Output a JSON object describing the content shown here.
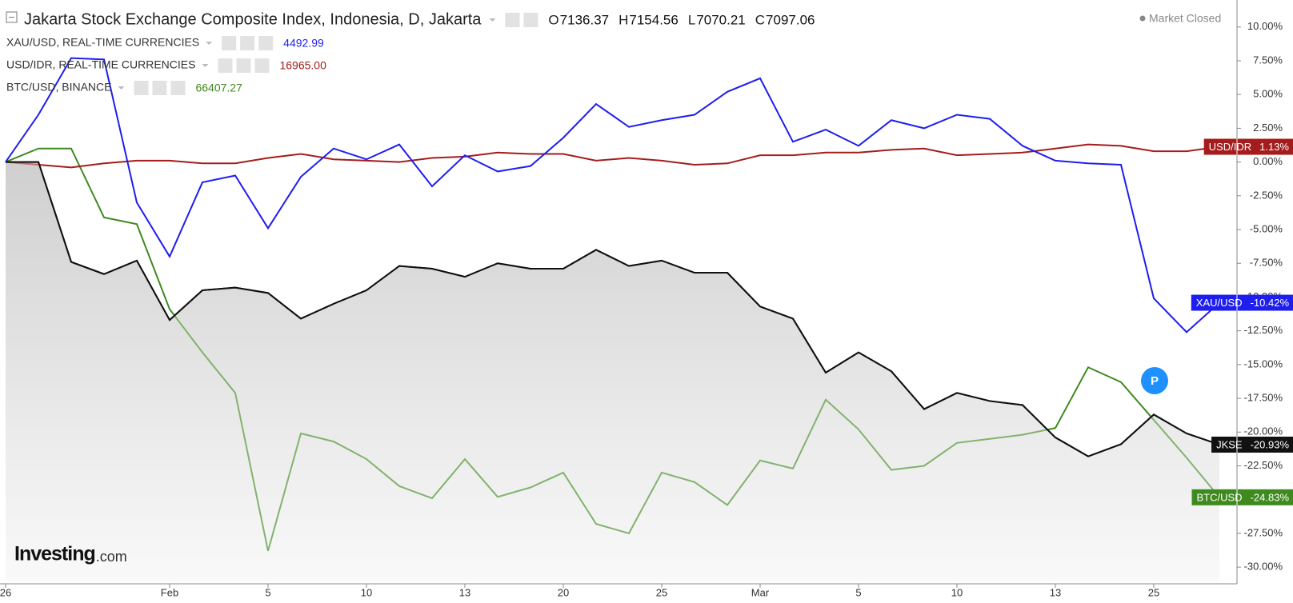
{
  "chart_data": {
    "type": "line",
    "title": "Jakarta Stock Exchange Composite Index, Indonesia, D, Jakarta",
    "ohlc": [
      {
        "label": "O",
        "value": 7136.37
      },
      {
        "label": "H",
        "value": 7154.56
      },
      {
        "label": "L",
        "value": 7070.21
      },
      {
        "label": "C",
        "value": 7097.06
      }
    ],
    "status": "Market Closed",
    "watermark": [
      "Investing",
      ".com"
    ],
    "marker": "P",
    "categories": [
      "26",
      null,
      null,
      null,
      null,
      "Feb",
      null,
      null,
      "5",
      null,
      null,
      "10",
      null,
      null,
      "13",
      null,
      null,
      "20",
      null,
      null,
      "25",
      null,
      null,
      "Mar",
      null,
      null,
      "5",
      null,
      null,
      "10",
      null,
      null,
      "13",
      null,
      null,
      "25",
      null,
      null
    ],
    "ylim": [
      -31,
      12
    ],
    "yticks": [
      {
        "value": 10,
        "label": "10.00%"
      },
      {
        "value": 7.5,
        "label": "7.50%"
      },
      {
        "value": 5,
        "label": "5.00%"
      },
      {
        "value": 2.5,
        "label": "2.50%"
      },
      {
        "value": 0,
        "label": "0.00%"
      },
      {
        "value": -2.5,
        "label": "-2.50%"
      },
      {
        "value": -5,
        "label": "-5.00%"
      },
      {
        "value": -7.5,
        "label": "-7.50%"
      },
      {
        "value": -10,
        "label": "-10.00%"
      },
      {
        "value": -12.5,
        "label": "-12.50%"
      },
      {
        "value": -15,
        "label": "-15.00%"
      },
      {
        "value": -17.5,
        "label": "-17.50%"
      },
      {
        "value": -20,
        "label": "-20.00%"
      },
      {
        "value": -22.5,
        "label": "-22.50%"
      },
      {
        "value": -25,
        "label": "-25.00%"
      },
      {
        "value": -27.5,
        "label": "-27.50%"
      },
      {
        "value": -30,
        "label": "-30.00%"
      }
    ],
    "series": [
      {
        "tag": "JKSE",
        "tag_value": "-20.93%",
        "color": "#111111",
        "area": true,
        "values": [
          0,
          0,
          -7.4,
          -8.3,
          -7.3,
          -11.7,
          -9.5,
          -9.3,
          -9.7,
          -11.6,
          -10.5,
          -9.5,
          -7.7,
          -7.9,
          -8.5,
          -7.5,
          -7.9,
          -7.9,
          -6.5,
          -7.7,
          -7.3,
          -8.2,
          -8.2,
          -10.7,
          -11.6,
          -15.6,
          -14.1,
          -15.5,
          -18.3,
          -17.1,
          -17.7,
          -18.0,
          -20.4,
          -21.8,
          -20.9,
          -18.7,
          -20.1,
          -20.93
        ]
      },
      {
        "name": "XAU/USD, REAL-TIME CURRENCIES",
        "last": 4492.99,
        "tag": "XAU/USD",
        "tag_value": "-10.42%",
        "color": "#1e1ef0",
        "values": [
          0,
          3.5,
          7.7,
          7.6,
          -3.0,
          -7.0,
          -1.5,
          -1.0,
          -4.9,
          -1.1,
          1.0,
          0.2,
          1.3,
          -1.8,
          0.5,
          -0.7,
          -0.3,
          1.8,
          4.3,
          2.6,
          3.1,
          3.5,
          5.2,
          6.2,
          1.5,
          2.4,
          1.2,
          3.1,
          2.5,
          3.5,
          3.2,
          1.2,
          0.1,
          -0.1,
          -0.2,
          -10.1,
          -12.6,
          -10.42
        ]
      },
      {
        "name": "USD/IDR, REAL-TIME CURRENCIES",
        "last": "16965.00",
        "tag": "USD/IDR",
        "tag_value": "1.13%",
        "color": "#a51c1c",
        "values": [
          0,
          -0.2,
          -0.4,
          -0.1,
          0.1,
          0.1,
          -0.1,
          -0.1,
          0.3,
          0.6,
          0.2,
          0.1,
          0.0,
          0.3,
          0.4,
          0.7,
          0.6,
          0.6,
          0.1,
          0.3,
          0.1,
          -0.2,
          -0.1,
          0.5,
          0.5,
          0.7,
          0.7,
          0.9,
          1.0,
          0.5,
          0.6,
          0.7,
          1.0,
          1.3,
          1.2,
          0.8,
          0.8,
          1.13
        ]
      },
      {
        "name": "BTC/USD, BINANCE",
        "last": 66407.27,
        "tag": "BTC/USD",
        "tag_value": "-24.83%",
        "color": "#3f8a1f",
        "values": [
          0,
          1.0,
          1.0,
          -4.1,
          -4.6,
          -10.9,
          -14.1,
          -17.1,
          -28.8,
          -20.1,
          -20.7,
          -22.0,
          -24.0,
          -24.9,
          -22.0,
          -24.8,
          -24.1,
          -23.0,
          -26.8,
          -27.5,
          -23.0,
          -23.7,
          -25.4,
          -22.1,
          -22.7,
          -17.6,
          -19.8,
          -22.8,
          -22.5,
          -20.8,
          -20.5,
          -20.2,
          -19.7,
          -15.2,
          -16.3,
          -19.1,
          -21.9,
          -24.83
        ]
      }
    ]
  }
}
